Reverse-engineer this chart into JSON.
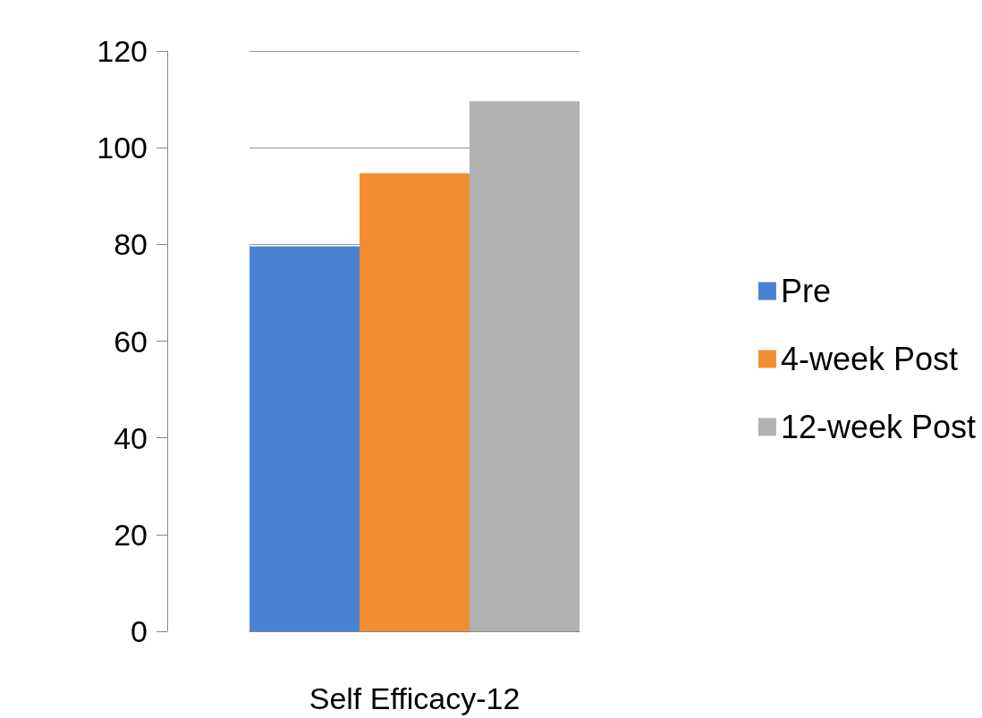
{
  "chart_data": {
    "type": "bar",
    "categories": [
      null,
      null,
      null
    ],
    "xlabel": "Self Efficacy-12",
    "series": [
      {
        "name": "Pre",
        "color": "#4a83d4",
        "values": [
          79.6,
          null,
          null
        ]
      },
      {
        "name": "4-week Post",
        "color": "#f28e30",
        "values": [
          null,
          94.7,
          null
        ]
      },
      {
        "name": "12-week Post",
        "color": "#b2b2b2",
        "values": [
          null,
          null,
          109.6
        ]
      }
    ],
    "ylim": [
      0,
      120
    ],
    "yticks": [
      0,
      20,
      40,
      60,
      80,
      100,
      120
    ],
    "grid": "y",
    "legend": "right"
  }
}
